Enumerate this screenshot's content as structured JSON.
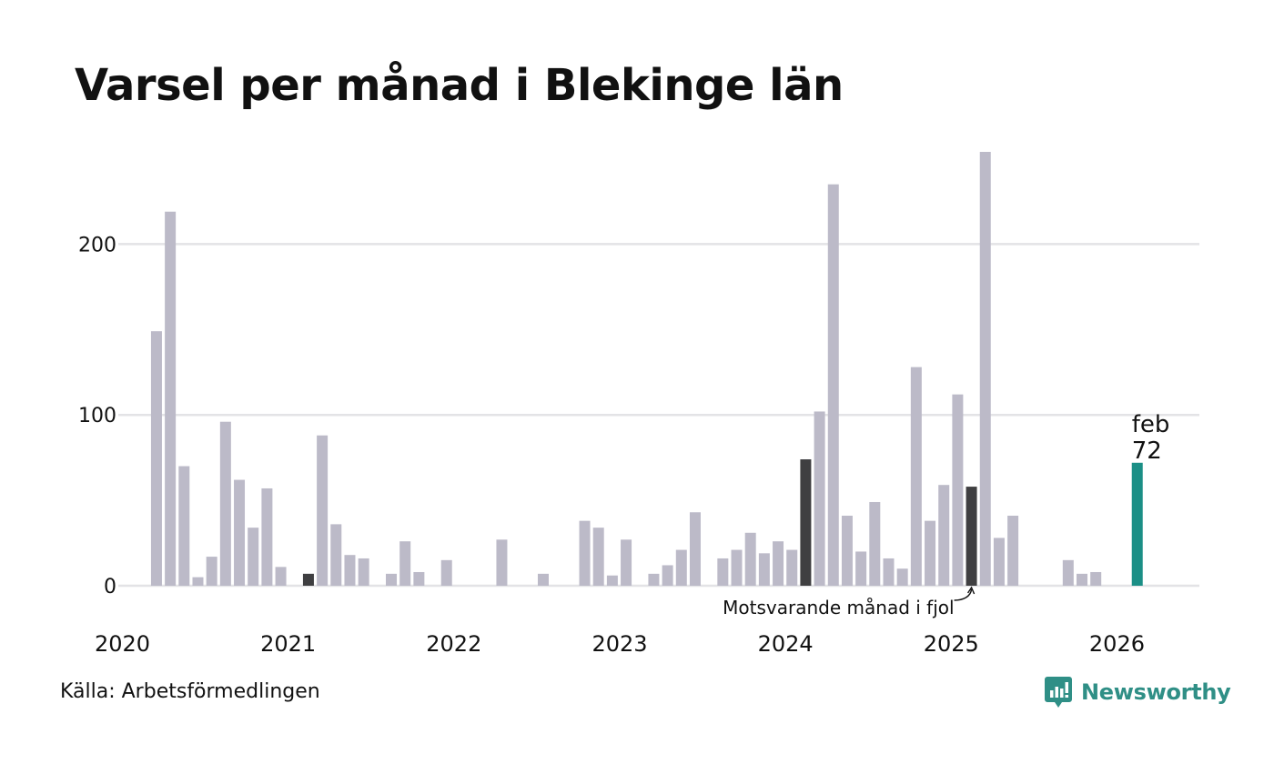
{
  "chart_data": {
    "type": "bar",
    "title": "Varsel per månad i Blekinge län",
    "xlabel": "",
    "ylabel": "",
    "ylim": [
      0,
      255
    ],
    "y_ticks": [
      0,
      100,
      200
    ],
    "x_tick_labels": [
      "2020",
      "2021",
      "2022",
      "2023",
      "2024",
      "2025",
      "2026"
    ],
    "grid": "horizontal",
    "start_month": "2020-01",
    "values": [
      0,
      0,
      149,
      219,
      70,
      5,
      17,
      96,
      62,
      34,
      57,
      11,
      0,
      7,
      88,
      36,
      18,
      16,
      0,
      7,
      26,
      8,
      0,
      15,
      0,
      0,
      0,
      27,
      0,
      0,
      7,
      0,
      0,
      38,
      34,
      6,
      27,
      0,
      7,
      12,
      21,
      43,
      0,
      16,
      21,
      31,
      19,
      26,
      21,
      74,
      102,
      235,
      41,
      20,
      49,
      16,
      10,
      128,
      38,
      59,
      112,
      58,
      254,
      28,
      41,
      0,
      0,
      0,
      15,
      7,
      8,
      0,
      0,
      72
    ],
    "highlight_months": [
      "2021-02",
      "2024-02",
      "2025-02"
    ],
    "current": {
      "month": "2026-02",
      "label": "feb",
      "value": "72"
    },
    "annotation": "Motsvarande månad i fjol",
    "colors": {
      "default": "#bcbac8",
      "highlight": "#3f3f41",
      "current": "#1b8f86",
      "grid": "#e3e3e6",
      "text": "#111111"
    }
  },
  "footer": {
    "source": "Källa: Arbetsförmedlingen",
    "brand": "Newsworthy",
    "brand_icon": "newsworthy-logo-icon",
    "brand_color": "#2f8f86"
  }
}
